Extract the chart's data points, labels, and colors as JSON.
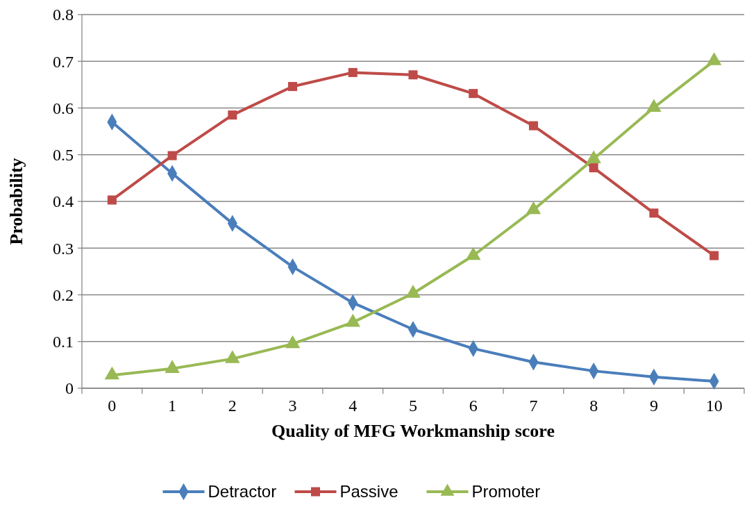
{
  "chart_data": {
    "type": "line",
    "xlabel": "Quality of MFG Workmanship score",
    "ylabel": "Probability",
    "categories": [
      "0",
      "1",
      "2",
      "3",
      "4",
      "5",
      "6",
      "7",
      "8",
      "9",
      "10"
    ],
    "series": [
      {
        "name": "Detractor",
        "color": "#4a7ebb",
        "marker": "diamond",
        "values": [
          0.57,
          0.46,
          0.353,
          0.26,
          0.183,
          0.126,
          0.085,
          0.056,
          0.037,
          0.024,
          0.015
        ]
      },
      {
        "name": "Passive",
        "color": "#be4b48",
        "marker": "square",
        "values": [
          0.403,
          0.498,
          0.585,
          0.646,
          0.676,
          0.671,
          0.631,
          0.562,
          0.472,
          0.375,
          0.284
        ]
      },
      {
        "name": "Promoter",
        "color": "#98b954",
        "marker": "triangle",
        "values": [
          0.028,
          0.042,
          0.063,
          0.095,
          0.141,
          0.203,
          0.284,
          0.382,
          0.491,
          0.601,
          0.701
        ]
      }
    ],
    "ylim": [
      0,
      0.8
    ],
    "yticks": [
      0,
      0.1,
      0.2,
      0.3,
      0.4,
      0.5,
      0.6,
      0.7,
      0.8
    ],
    "grid": "y",
    "legend": "bottom",
    "line_style": "solid"
  }
}
